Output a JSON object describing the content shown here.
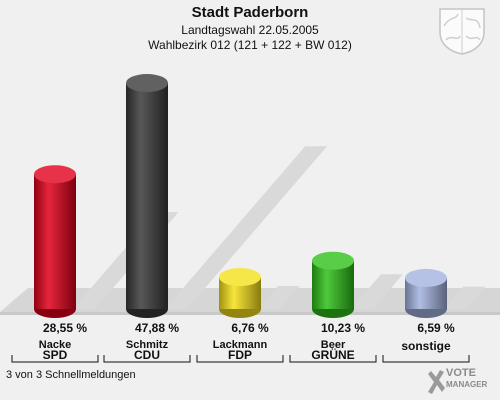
{
  "header": {
    "title": "Stadt Paderborn",
    "subtitle1": "Landtagswahl 22.05.2005",
    "subtitle2": "Wahlbezirk 012 (121 + 122 + BW 012)"
  },
  "chart_data": {
    "type": "bar",
    "categories": [
      "SPD",
      "CDU",
      "FDP",
      "GRÜNE",
      "sonstige"
    ],
    "candidates": [
      "Nacke",
      "Schmitz",
      "Lackmann",
      "Beer",
      ""
    ],
    "values": [
      28.55,
      47.88,
      6.76,
      10.23,
      6.59
    ],
    "value_labels": [
      "28,55 %",
      "47,88 %",
      "6,76 %",
      "10,23 %",
      "6,59 %"
    ],
    "colors": [
      "#e0001b",
      "#3a3a3a",
      "#f5e01a",
      "#2fbf1a",
      "#a3b3e0"
    ],
    "ylim": [
      0,
      50
    ]
  },
  "footer": {
    "status": "3 von 3 Schnellmeldungen",
    "logo_line1": "VOTE",
    "logo_line2": "MANAGER"
  }
}
